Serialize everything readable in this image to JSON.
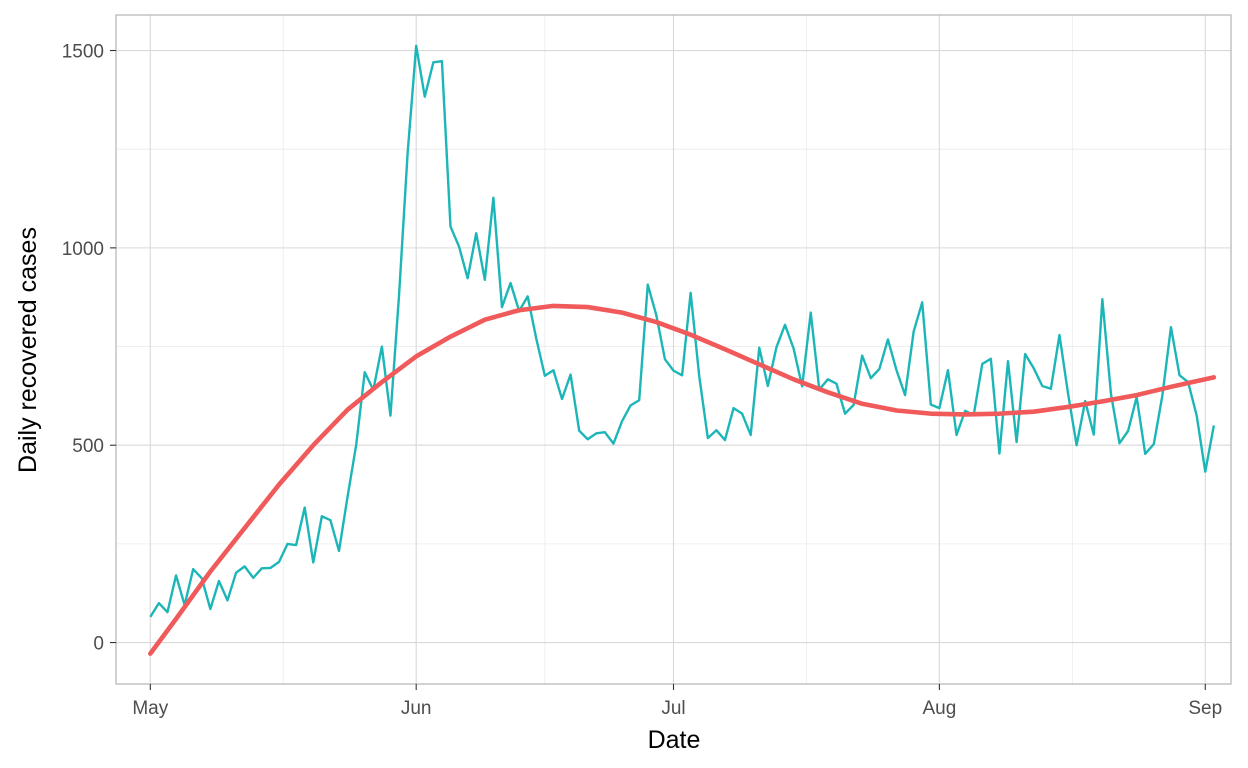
{
  "chart_data": {
    "type": "line",
    "xlabel": "Date",
    "ylabel": "Daily recovered cases",
    "x_ticks": [
      {
        "date": "2020-05-01",
        "label": "May"
      },
      {
        "date": "2020-06-01",
        "label": "Jun"
      },
      {
        "date": "2020-07-01",
        "label": "Jul"
      },
      {
        "date": "2020-08-01",
        "label": "Aug"
      },
      {
        "date": "2020-09-01",
        "label": "Sep"
      }
    ],
    "y_ticks": [
      0,
      500,
      1000,
      1500
    ],
    "xlim": [
      "2020-04-27",
      "2020-09-04"
    ],
    "ylim": [
      -105,
      1590
    ],
    "grid": true,
    "background": "#ffffff",
    "series": [
      {
        "role": "daily",
        "color": "#1db6b8",
        "points": [
          [
            "2020-05-01",
            65
          ],
          [
            "2020-05-02",
            100
          ],
          [
            "2020-05-03",
            77
          ],
          [
            "2020-05-04",
            170
          ],
          [
            "2020-05-05",
            95
          ],
          [
            "2020-05-06",
            186
          ],
          [
            "2020-05-07",
            163
          ],
          [
            "2020-05-08",
            85
          ],
          [
            "2020-05-09",
            156
          ],
          [
            "2020-05-10",
            107
          ],
          [
            "2020-05-11",
            177
          ],
          [
            "2020-05-12",
            193
          ],
          [
            "2020-05-13",
            164
          ],
          [
            "2020-05-14",
            188
          ],
          [
            "2020-05-15",
            189
          ],
          [
            "2020-05-16",
            204
          ],
          [
            "2020-05-17",
            250
          ],
          [
            "2020-05-18",
            247
          ],
          [
            "2020-05-19",
            342
          ],
          [
            "2020-05-20",
            203
          ],
          [
            "2020-05-21",
            320
          ],
          [
            "2020-05-22",
            310
          ],
          [
            "2020-05-23",
            232
          ],
          [
            "2020-05-24",
            370
          ],
          [
            "2020-05-25",
            500
          ],
          [
            "2020-05-26",
            685
          ],
          [
            "2020-05-27",
            640
          ],
          [
            "2020-05-28",
            750
          ],
          [
            "2020-05-29",
            575
          ],
          [
            "2020-05-30",
            880
          ],
          [
            "2020-05-31",
            1240
          ],
          [
            "2020-06-01",
            1512
          ],
          [
            "2020-06-02",
            1383
          ],
          [
            "2020-06-03",
            1470
          ],
          [
            "2020-06-04",
            1473
          ],
          [
            "2020-06-05",
            1054
          ],
          [
            "2020-06-06",
            1003
          ],
          [
            "2020-06-07",
            923
          ],
          [
            "2020-06-08",
            1037
          ],
          [
            "2020-06-09",
            919
          ],
          [
            "2020-06-10",
            1127
          ],
          [
            "2020-06-11",
            850
          ],
          [
            "2020-06-12",
            911
          ],
          [
            "2020-06-13",
            840
          ],
          [
            "2020-06-14",
            877
          ],
          [
            "2020-06-15",
            770
          ],
          [
            "2020-06-16",
            676
          ],
          [
            "2020-06-17",
            690
          ],
          [
            "2020-06-18",
            617
          ],
          [
            "2020-06-19",
            679
          ],
          [
            "2020-06-20",
            537
          ],
          [
            "2020-06-21",
            515
          ],
          [
            "2020-06-22",
            530
          ],
          [
            "2020-06-23",
            533
          ],
          [
            "2020-06-24",
            504
          ],
          [
            "2020-06-25",
            561
          ],
          [
            "2020-06-26",
            601
          ],
          [
            "2020-06-27",
            614
          ],
          [
            "2020-06-28",
            907
          ],
          [
            "2020-06-29",
            829
          ],
          [
            "2020-06-30",
            718
          ],
          [
            "2020-07-01",
            689
          ],
          [
            "2020-07-02",
            677
          ],
          [
            "2020-07-03",
            886
          ],
          [
            "2020-07-04",
            675
          ],
          [
            "2020-07-05",
            518
          ],
          [
            "2020-07-06",
            538
          ],
          [
            "2020-07-07",
            513
          ],
          [
            "2020-07-08",
            594
          ],
          [
            "2020-07-09",
            580
          ],
          [
            "2020-07-10",
            526
          ],
          [
            "2020-07-11",
            747
          ],
          [
            "2020-07-12",
            650
          ],
          [
            "2020-07-13",
            748
          ],
          [
            "2020-07-14",
            805
          ],
          [
            "2020-07-15",
            745
          ],
          [
            "2020-07-16",
            649
          ],
          [
            "2020-07-17",
            836
          ],
          [
            "2020-07-18",
            641
          ],
          [
            "2020-07-19",
            667
          ],
          [
            "2020-07-20",
            656
          ],
          [
            "2020-07-21",
            580
          ],
          [
            "2020-07-22",
            602
          ],
          [
            "2020-07-23",
            727
          ],
          [
            "2020-07-24",
            670
          ],
          [
            "2020-07-25",
            693
          ],
          [
            "2020-07-26",
            768
          ],
          [
            "2020-07-27",
            690
          ],
          [
            "2020-07-28",
            627
          ],
          [
            "2020-07-29",
            788
          ],
          [
            "2020-07-30",
            862
          ],
          [
            "2020-07-31",
            603
          ],
          [
            "2020-08-01",
            594
          ],
          [
            "2020-08-02",
            690
          ],
          [
            "2020-08-03",
            526
          ],
          [
            "2020-08-04",
            587
          ],
          [
            "2020-08-05",
            576
          ],
          [
            "2020-08-06",
            706
          ],
          [
            "2020-08-07",
            719
          ],
          [
            "2020-08-08",
            479
          ],
          [
            "2020-08-09",
            713
          ],
          [
            "2020-08-10",
            508
          ],
          [
            "2020-08-11",
            731
          ],
          [
            "2020-08-12",
            695
          ],
          [
            "2020-08-13",
            650
          ],
          [
            "2020-08-14",
            643
          ],
          [
            "2020-08-15",
            779
          ],
          [
            "2020-08-16",
            631
          ],
          [
            "2020-08-17",
            500
          ],
          [
            "2020-08-18",
            612
          ],
          [
            "2020-08-19",
            527
          ],
          [
            "2020-08-20",
            870
          ],
          [
            "2020-08-21",
            631
          ],
          [
            "2020-08-22",
            505
          ],
          [
            "2020-08-23",
            536
          ],
          [
            "2020-08-24",
            622
          ],
          [
            "2020-08-25",
            478
          ],
          [
            "2020-08-26",
            503
          ],
          [
            "2020-08-27",
            626
          ],
          [
            "2020-08-28",
            799
          ],
          [
            "2020-08-29",
            677
          ],
          [
            "2020-08-30",
            660
          ],
          [
            "2020-08-31",
            575
          ],
          [
            "2020-09-01",
            433
          ],
          [
            "2020-09-02",
            550
          ]
        ]
      },
      {
        "role": "trend",
        "color": "#f05a5a",
        "points": [
          [
            "2020-05-01",
            -28
          ],
          [
            "2020-05-04",
            60
          ],
          [
            "2020-05-08",
            180
          ],
          [
            "2020-05-12",
            290
          ],
          [
            "2020-05-16",
            400
          ],
          [
            "2020-05-20",
            500
          ],
          [
            "2020-05-24",
            590
          ],
          [
            "2020-05-28",
            660
          ],
          [
            "2020-06-01",
            725
          ],
          [
            "2020-06-05",
            775
          ],
          [
            "2020-06-09",
            818
          ],
          [
            "2020-06-13",
            842
          ],
          [
            "2020-06-17",
            853
          ],
          [
            "2020-06-21",
            850
          ],
          [
            "2020-06-25",
            836
          ],
          [
            "2020-06-29",
            812
          ],
          [
            "2020-07-03",
            780
          ],
          [
            "2020-07-07",
            743
          ],
          [
            "2020-07-11",
            705
          ],
          [
            "2020-07-15",
            667
          ],
          [
            "2020-07-19",
            634
          ],
          [
            "2020-07-23",
            605
          ],
          [
            "2020-07-27",
            588
          ],
          [
            "2020-07-31",
            580
          ],
          [
            "2020-08-04",
            578
          ],
          [
            "2020-08-08",
            580
          ],
          [
            "2020-08-12",
            585
          ],
          [
            "2020-08-16",
            597
          ],
          [
            "2020-08-20",
            611
          ],
          [
            "2020-08-24",
            627
          ],
          [
            "2020-08-28",
            648
          ],
          [
            "2020-09-02",
            672
          ]
        ]
      }
    ]
  }
}
